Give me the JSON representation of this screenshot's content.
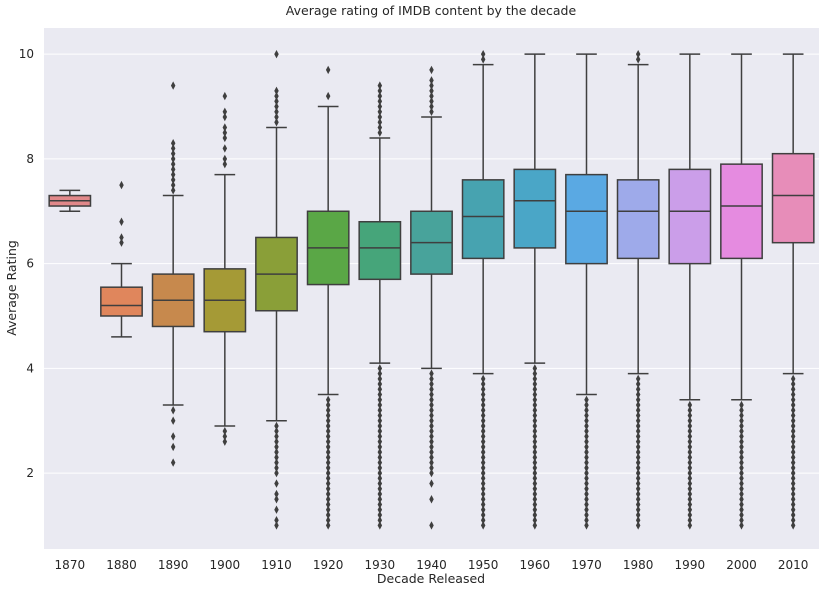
{
  "chart_data": {
    "type": "box",
    "title": "Average rating of IMDB content by the decade",
    "xlabel": "Decade Released",
    "ylabel": "Average Rating",
    "ylim": [
      0.55,
      10.5
    ],
    "yticks": [
      "2",
      "4",
      "6",
      "8",
      "10"
    ],
    "grid": true,
    "boxes": [
      {
        "category": "1870",
        "color": "#e1888a",
        "q1": 7.1,
        "median": 7.2,
        "q3": 7.3,
        "whisker_low": 7.0,
        "whisker_high": 7.4,
        "outliers": []
      },
      {
        "category": "1880",
        "color": "#e0865c",
        "q1": 5.0,
        "median": 5.2,
        "q3": 5.55,
        "whisker_low": 4.6,
        "whisker_high": 6.0,
        "outliers": [
          6.4,
          6.5,
          6.8,
          7.5
        ]
      },
      {
        "category": "1890",
        "color": "#c7894d",
        "q1": 4.8,
        "median": 5.3,
        "q3": 5.8,
        "whisker_low": 3.3,
        "whisker_high": 7.3,
        "outliers": [
          2.2,
          2.5,
          2.7,
          3.0,
          3.2,
          7.4,
          7.5,
          7.6,
          7.7,
          7.8,
          7.9,
          8.0,
          8.1,
          8.2,
          8.3,
          9.4
        ]
      },
      {
        "category": "1900",
        "color": "#a59a36",
        "q1": 4.7,
        "median": 5.3,
        "q3": 5.9,
        "whisker_low": 2.9,
        "whisker_high": 7.7,
        "outliers": [
          2.6,
          2.7,
          2.8,
          7.9,
          8.0,
          8.2,
          8.4,
          8.5,
          8.6,
          8.8,
          8.9,
          9.2
        ]
      },
      {
        "category": "1910",
        "color": "#8a9f38",
        "q1": 5.1,
        "median": 5.8,
        "q3": 6.5,
        "whisker_low": 3.0,
        "whisker_high": 8.6,
        "outliers": [
          1.0,
          1.1,
          1.3,
          1.5,
          1.6,
          1.8,
          2.0,
          2.1,
          2.2,
          2.3,
          2.4,
          2.5,
          2.6,
          2.7,
          2.8,
          2.9,
          8.7,
          8.8,
          8.9,
          9.0,
          9.1,
          9.2,
          9.3,
          10.0
        ]
      },
      {
        "category": "1920",
        "color": "#5aa746",
        "q1": 5.6,
        "median": 6.3,
        "q3": 7.0,
        "whisker_low": 3.5,
        "whisker_high": 9.0,
        "outliers": [
          1.0,
          1.1,
          1.2,
          1.3,
          1.4,
          1.5,
          1.6,
          1.7,
          1.8,
          1.9,
          2.0,
          2.1,
          2.2,
          2.3,
          2.4,
          2.5,
          2.6,
          2.7,
          2.8,
          2.9,
          3.0,
          3.1,
          3.2,
          3.3,
          3.4,
          9.2,
          9.7
        ]
      },
      {
        "category": "1930",
        "color": "#46a57a",
        "q1": 5.7,
        "median": 6.3,
        "q3": 6.8,
        "whisker_low": 4.1,
        "whisker_high": 8.4,
        "outliers": [
          1.0,
          1.1,
          1.2,
          1.3,
          1.4,
          1.5,
          1.6,
          1.7,
          1.8,
          1.9,
          2.0,
          2.1,
          2.2,
          2.3,
          2.4,
          2.5,
          2.6,
          2.7,
          2.8,
          2.9,
          3.0,
          3.1,
          3.2,
          3.3,
          3.4,
          3.5,
          3.6,
          3.7,
          3.8,
          3.9,
          4.0,
          8.5,
          8.6,
          8.7,
          8.8,
          8.9,
          9.0,
          9.1,
          9.2,
          9.3,
          9.4
        ]
      },
      {
        "category": "1940",
        "color": "#48a39b",
        "q1": 5.8,
        "median": 6.4,
        "q3": 7.0,
        "whisker_low": 4.0,
        "whisker_high": 8.8,
        "outliers": [
          1.0,
          1.5,
          1.8,
          2.0,
          2.1,
          2.2,
          2.3,
          2.4,
          2.5,
          2.6,
          2.7,
          2.8,
          2.9,
          3.0,
          3.1,
          3.2,
          3.3,
          3.4,
          3.5,
          3.6,
          3.7,
          3.8,
          3.9,
          8.9,
          9.0,
          9.1,
          9.2,
          9.3,
          9.4,
          9.5,
          9.7
        ]
      },
      {
        "category": "1950",
        "color": "#47a3b0",
        "q1": 6.1,
        "median": 6.9,
        "q3": 7.6,
        "whisker_low": 3.9,
        "whisker_high": 9.8,
        "outliers": [
          1.0,
          1.1,
          1.2,
          1.3,
          1.4,
          1.5,
          1.6,
          1.7,
          1.8,
          1.9,
          2.0,
          2.1,
          2.2,
          2.3,
          2.4,
          2.5,
          2.6,
          2.7,
          2.8,
          2.9,
          3.0,
          3.1,
          3.2,
          3.3,
          3.4,
          3.5,
          3.6,
          3.7,
          3.8,
          9.9,
          10.0
        ]
      },
      {
        "category": "1960",
        "color": "#4aa6c7",
        "q1": 6.3,
        "median": 7.2,
        "q3": 7.8,
        "whisker_low": 4.1,
        "whisker_high": 10.0,
        "outliers": [
          1.0,
          1.1,
          1.2,
          1.3,
          1.4,
          1.5,
          1.6,
          1.7,
          1.8,
          1.9,
          2.0,
          2.1,
          2.2,
          2.3,
          2.4,
          2.5,
          2.6,
          2.7,
          2.8,
          2.9,
          3.0,
          3.1,
          3.2,
          3.3,
          3.4,
          3.5,
          3.6,
          3.7,
          3.8,
          3.9,
          4.0
        ]
      },
      {
        "category": "1970",
        "color": "#5aa9e3",
        "q1": 6.0,
        "median": 7.0,
        "q3": 7.7,
        "whisker_low": 3.5,
        "whisker_high": 10.0,
        "outliers": [
          1.0,
          1.1,
          1.2,
          1.3,
          1.4,
          1.5,
          1.6,
          1.7,
          1.8,
          1.9,
          2.0,
          2.1,
          2.2,
          2.3,
          2.4,
          2.5,
          2.6,
          2.7,
          2.8,
          2.9,
          3.0,
          3.1,
          3.2,
          3.3,
          3.4
        ]
      },
      {
        "category": "1980",
        "color": "#9eaaea",
        "q1": 6.1,
        "median": 7.0,
        "q3": 7.6,
        "whisker_low": 3.9,
        "whisker_high": 9.8,
        "outliers": [
          1.0,
          1.1,
          1.2,
          1.3,
          1.4,
          1.5,
          1.6,
          1.7,
          1.8,
          1.9,
          2.0,
          2.1,
          2.2,
          2.3,
          2.4,
          2.5,
          2.6,
          2.7,
          2.8,
          2.9,
          3.0,
          3.1,
          3.2,
          3.3,
          3.4,
          3.5,
          3.6,
          3.7,
          3.8,
          9.9,
          10.0
        ]
      },
      {
        "category": "1990",
        "color": "#cb9ee9",
        "q1": 6.0,
        "median": 7.0,
        "q3": 7.8,
        "whisker_low": 3.4,
        "whisker_high": 10.0,
        "outliers": [
          1.0,
          1.1,
          1.2,
          1.3,
          1.4,
          1.5,
          1.6,
          1.7,
          1.8,
          1.9,
          2.0,
          2.1,
          2.2,
          2.3,
          2.4,
          2.5,
          2.6,
          2.7,
          2.8,
          2.9,
          3.0,
          3.1,
          3.2,
          3.3
        ]
      },
      {
        "category": "2000",
        "color": "#e58be0",
        "q1": 6.1,
        "median": 7.1,
        "q3": 7.9,
        "whisker_low": 3.4,
        "whisker_high": 10.0,
        "outliers": [
          1.0,
          1.1,
          1.2,
          1.3,
          1.4,
          1.5,
          1.6,
          1.7,
          1.8,
          1.9,
          2.0,
          2.1,
          2.2,
          2.3,
          2.4,
          2.5,
          2.6,
          2.7,
          2.8,
          2.9,
          3.0,
          3.1,
          3.2,
          3.3
        ]
      },
      {
        "category": "2010",
        "color": "#e78db9",
        "q1": 6.4,
        "median": 7.3,
        "q3": 8.1,
        "whisker_low": 3.9,
        "whisker_high": 10.0,
        "outliers": [
          1.0,
          1.1,
          1.2,
          1.3,
          1.4,
          1.5,
          1.6,
          1.7,
          1.8,
          1.9,
          2.0,
          2.1,
          2.2,
          2.3,
          2.4,
          2.5,
          2.6,
          2.7,
          2.8,
          2.9,
          3.0,
          3.1,
          3.2,
          3.3,
          3.4,
          3.5,
          3.6,
          3.7,
          3.8
        ]
      }
    ]
  },
  "colors": {
    "plot_background": "#eaeaf2",
    "grid": "#ffffff",
    "box_edge": "#3f3f3f",
    "text": "#262626"
  }
}
